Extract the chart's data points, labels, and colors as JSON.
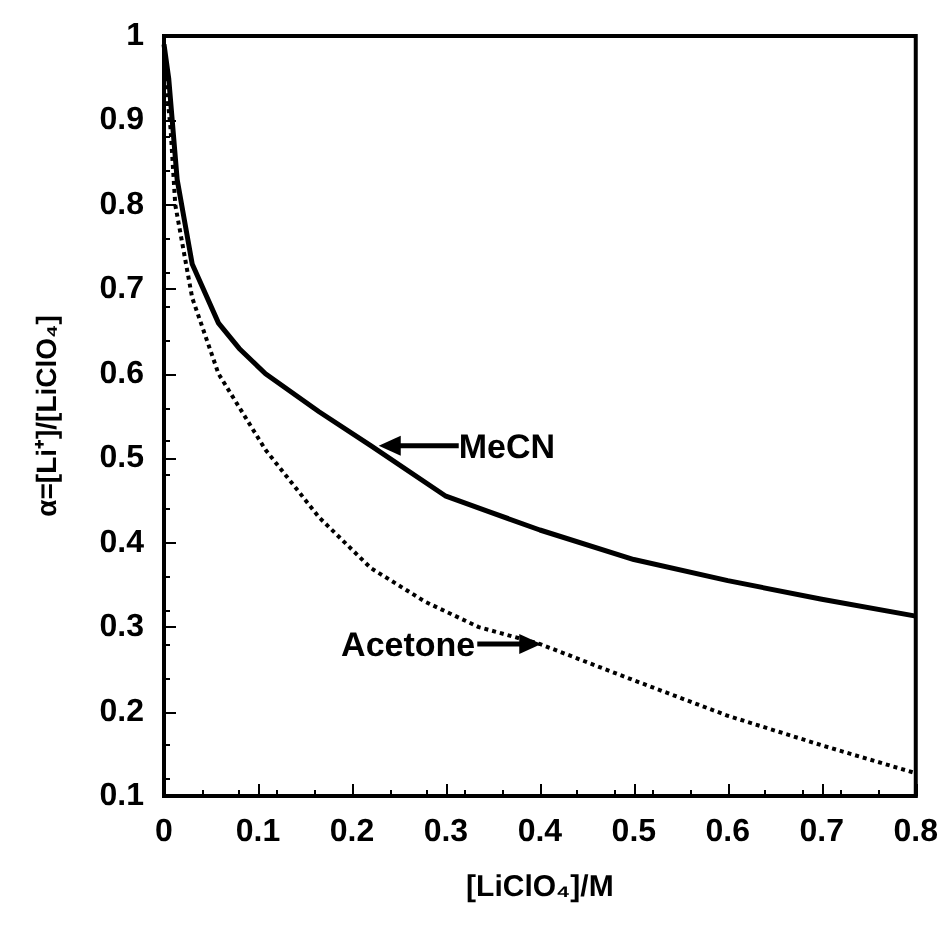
{
  "chart_data": {
    "type": "line",
    "xlabel": "[LiClO₄]/M",
    "ylabel": "α=[Li⁺]/[LiClO₄]",
    "xlim": [
      0,
      0.8
    ],
    "xticks": [
      0,
      0.1,
      0.2,
      0.3,
      0.4,
      0.5,
      0.6,
      0.7,
      0.8
    ],
    "ylim": [
      0.1,
      1
    ],
    "yticks": [
      0.1,
      0.2,
      0.3,
      0.4,
      0.5,
      0.6,
      0.7,
      0.8,
      0.9,
      1
    ],
    "grid": false,
    "marker": "none",
    "series": [
      {
        "color": "#000000",
        "line_style": "solid",
        "x": [
          0,
          0.005,
          0.014,
          0.03,
          0.058,
          0.08,
          0.108,
          0.165,
          0.22,
          0.3,
          0.4,
          0.5,
          0.6,
          0.7,
          0.8
        ],
        "values": [
          0.99,
          0.95,
          0.83,
          0.73,
          0.66,
          0.63,
          0.6,
          0.555,
          0.515,
          0.455,
          0.415,
          0.38,
          0.355,
          0.333,
          0.313
        ]
      },
      {
        "color": "#000000",
        "line_style": "dotted",
        "x": [
          0,
          0.007,
          0.012,
          0.03,
          0.058,
          0.108,
          0.165,
          0.22,
          0.278,
          0.335,
          0.4,
          0.5,
          0.6,
          0.7,
          0.8
        ],
        "values": [
          0.97,
          0.89,
          0.8,
          0.69,
          0.6,
          0.51,
          0.43,
          0.37,
          0.33,
          0.3,
          0.28,
          0.237,
          0.195,
          0.16,
          0.127
        ]
      }
    ],
    "annotations": [
      {
        "text": "MeCN",
        "x": 0.22,
        "y": 0.51
      },
      {
        "text": "Acetone",
        "x": 0.41,
        "y": 0.28
      }
    ]
  }
}
